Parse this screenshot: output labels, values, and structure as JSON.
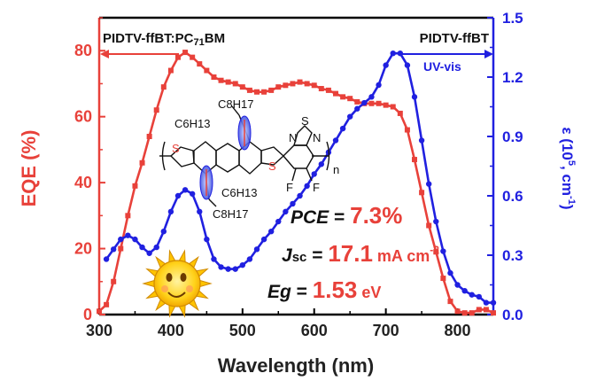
{
  "chart_data": {
    "type": "line",
    "xlabel": "Wavelength (nm)",
    "ylabel_left": "EQE (%)",
    "ylabel_right_prefix": "ε (10",
    "ylabel_right_exp": "5",
    "ylabel_right_mid": ", cm",
    "ylabel_right_exp2": "-1",
    "ylabel_right_suffix": ")",
    "xlim": [
      300,
      850
    ],
    "ylim_left": [
      0,
      90
    ],
    "ylim_right": [
      0,
      1.5
    ],
    "x_ticks": [
      "300",
      "400",
      "500",
      "600",
      "700",
      "800"
    ],
    "y_ticks_left": [
      "0",
      "20",
      "40",
      "60",
      "80"
    ],
    "y_ticks_right": [
      "0.0",
      "0.3",
      "0.6",
      "0.9",
      "1.2",
      "1.5"
    ],
    "series": [
      {
        "name": "PIDTV-ffBT:PC71BM",
        "axis": "left",
        "color": "#e8413a",
        "marker": "square",
        "x": [
          300,
          310,
          320,
          330,
          340,
          350,
          360,
          370,
          380,
          390,
          400,
          410,
          420,
          430,
          440,
          450,
          460,
          470,
          480,
          490,
          500,
          510,
          520,
          530,
          540,
          550,
          560,
          570,
          580,
          590,
          600,
          610,
          620,
          630,
          640,
          650,
          660,
          670,
          680,
          690,
          700,
          710,
          720,
          730,
          740,
          750,
          760,
          770,
          780,
          790,
          800,
          810,
          820,
          830,
          840,
          850
        ],
        "y": [
          1,
          3,
          10,
          20,
          30,
          39,
          46,
          54,
          62,
          69,
          74,
          78,
          79.5,
          78,
          76,
          74,
          72,
          71,
          70.5,
          70,
          69,
          68,
          67.5,
          67.5,
          68,
          69,
          69.5,
          70,
          70.5,
          70,
          69.5,
          68.5,
          68,
          67,
          66,
          65.5,
          64.5,
          64,
          64,
          64,
          63.5,
          63,
          61,
          56,
          47,
          37,
          27,
          19,
          11,
          4,
          1,
          0.5,
          0.5,
          1.5,
          1.5,
          0.5
        ]
      },
      {
        "name": "PIDTV-ffBT",
        "axis": "right",
        "color": "#2020e0",
        "marker": "circle",
        "x": [
          310,
          320,
          330,
          340,
          350,
          360,
          370,
          380,
          390,
          400,
          410,
          420,
          430,
          440,
          450,
          460,
          470,
          480,
          490,
          500,
          510,
          520,
          530,
          540,
          550,
          560,
          570,
          580,
          590,
          600,
          610,
          620,
          630,
          640,
          650,
          660,
          670,
          680,
          690,
          700,
          710,
          720,
          730,
          740,
          750,
          760,
          770,
          780,
          790,
          800,
          810,
          820,
          830,
          840,
          850
        ],
        "y": [
          0.28,
          0.33,
          0.38,
          0.4,
          0.38,
          0.34,
          0.31,
          0.34,
          0.42,
          0.52,
          0.6,
          0.63,
          0.61,
          0.52,
          0.38,
          0.28,
          0.24,
          0.23,
          0.23,
          0.25,
          0.28,
          0.33,
          0.38,
          0.42,
          0.47,
          0.52,
          0.56,
          0.6,
          0.65,
          0.71,
          0.76,
          0.82,
          0.88,
          0.94,
          1.0,
          1.04,
          1.07,
          1.1,
          1.16,
          1.26,
          1.32,
          1.32,
          1.26,
          1.1,
          0.88,
          0.66,
          0.47,
          0.32,
          0.21,
          0.15,
          0.12,
          0.1,
          0.09,
          0.06,
          0.06
        ]
      }
    ],
    "legend_left": "PIDTV-ffBT:PC71BM",
    "legend_left_main": "PIDTV-ffBT:PC",
    "legend_left_sub": "71",
    "legend_left_tail": "BM",
    "legend_right": "PIDTV-ffBT",
    "legend_right_sub": "UV-vis"
  },
  "annotations": {
    "pce_label": "PCE",
    "pce_eq": " = ",
    "pce_value": "7.3%",
    "jsc_label": "J",
    "jsc_sub": "sc",
    "jsc_eq": " = ",
    "jsc_value": "17.1",
    "jsc_unit": " mA cm",
    "jsc_unit_exp": "-2",
    "eg_label": "Eg",
    "eg_eq": " = ",
    "eg_value": "1.53",
    "eg_unit": " eV"
  },
  "molecule": {
    "sub_top": "C8H17",
    "sub_top_side": "C6H13",
    "sub_bottom": "C6H13",
    "sub_bottom_low": "C8H17",
    "atom_s": "S",
    "atom_n": "N",
    "atom_f": "F",
    "repeat_n": "n"
  },
  "colors": {
    "eqe": "#e8413a",
    "absorbance": "#2020e0",
    "highlight": "#e8413a",
    "text": "#111111"
  }
}
